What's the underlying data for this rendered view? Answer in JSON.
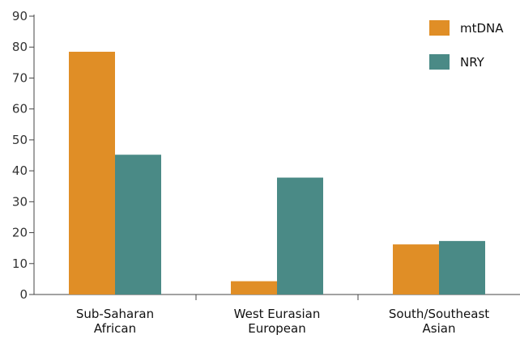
{
  "chart_data": {
    "type": "bar",
    "categories": [
      [
        "Sub-Saharan",
        "African"
      ],
      [
        "West Eurasian",
        "European"
      ],
      [
        "South/Southeast",
        "Asian"
      ]
    ],
    "series": [
      {
        "name": "mtDNA",
        "values": [
          78.5,
          4.3,
          16.2
        ],
        "color": "#E08E26"
      },
      {
        "name": "NRY",
        "values": [
          45.2,
          37.8,
          17.3
        ],
        "color": "#4A8A86"
      }
    ],
    "ylim": [
      0,
      90
    ],
    "yticks": [
      0,
      10,
      20,
      30,
      40,
      50,
      60,
      70,
      80,
      90
    ],
    "xlabel": "",
    "ylabel": "",
    "grid": false,
    "legend_position": "top-right"
  }
}
